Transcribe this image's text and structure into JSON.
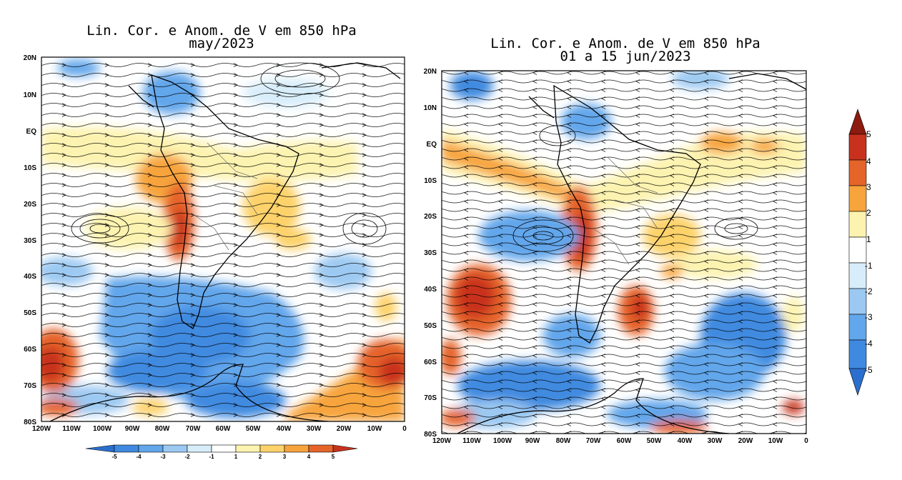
{
  "maps": [
    {
      "title_line1": "Lin. Cor. e Anom. de V em 850 hPa",
      "title_line2": "may/2023",
      "lat_labels": [
        "20N",
        "10N",
        "EQ",
        "10S",
        "20S",
        "30S",
        "40S",
        "50S",
        "60S",
        "70S",
        "80S"
      ],
      "lon_labels": [
        "120W",
        "110W",
        "100W",
        "90W",
        "80W",
        "70W",
        "60W",
        "50W",
        "40W",
        "30W",
        "20W",
        "10W",
        "0"
      ]
    },
    {
      "title_line1": "Lin. Cor. e Anom. de V em 850 hPa",
      "title_line2": "01 a 15 jun/2023",
      "lat_labels": [
        "20N",
        "10N",
        "EQ",
        "10S",
        "20S",
        "30S",
        "40S",
        "50S",
        "60S",
        "70S",
        "80S"
      ],
      "lon_labels": [
        "120W",
        "110W",
        "100W",
        "90W",
        "80W",
        "70W",
        "60W",
        "50W",
        "40W",
        "30W",
        "20W",
        "10W",
        "0"
      ]
    }
  ],
  "colorbar": {
    "labels": [
      "-5",
      "-4",
      "-3",
      "-2",
      "-1",
      "1",
      "2",
      "3",
      "4",
      "5"
    ],
    "colors": [
      "#2b6fce",
      "#3f8ae0",
      "#62a6eb",
      "#9cc9f2",
      "#d7edfa",
      "#ffffff",
      "#fdf3b0",
      "#fdd26b",
      "#f7a43c",
      "#e5642a",
      "#c8311d",
      "#8c1a0f"
    ]
  }
}
